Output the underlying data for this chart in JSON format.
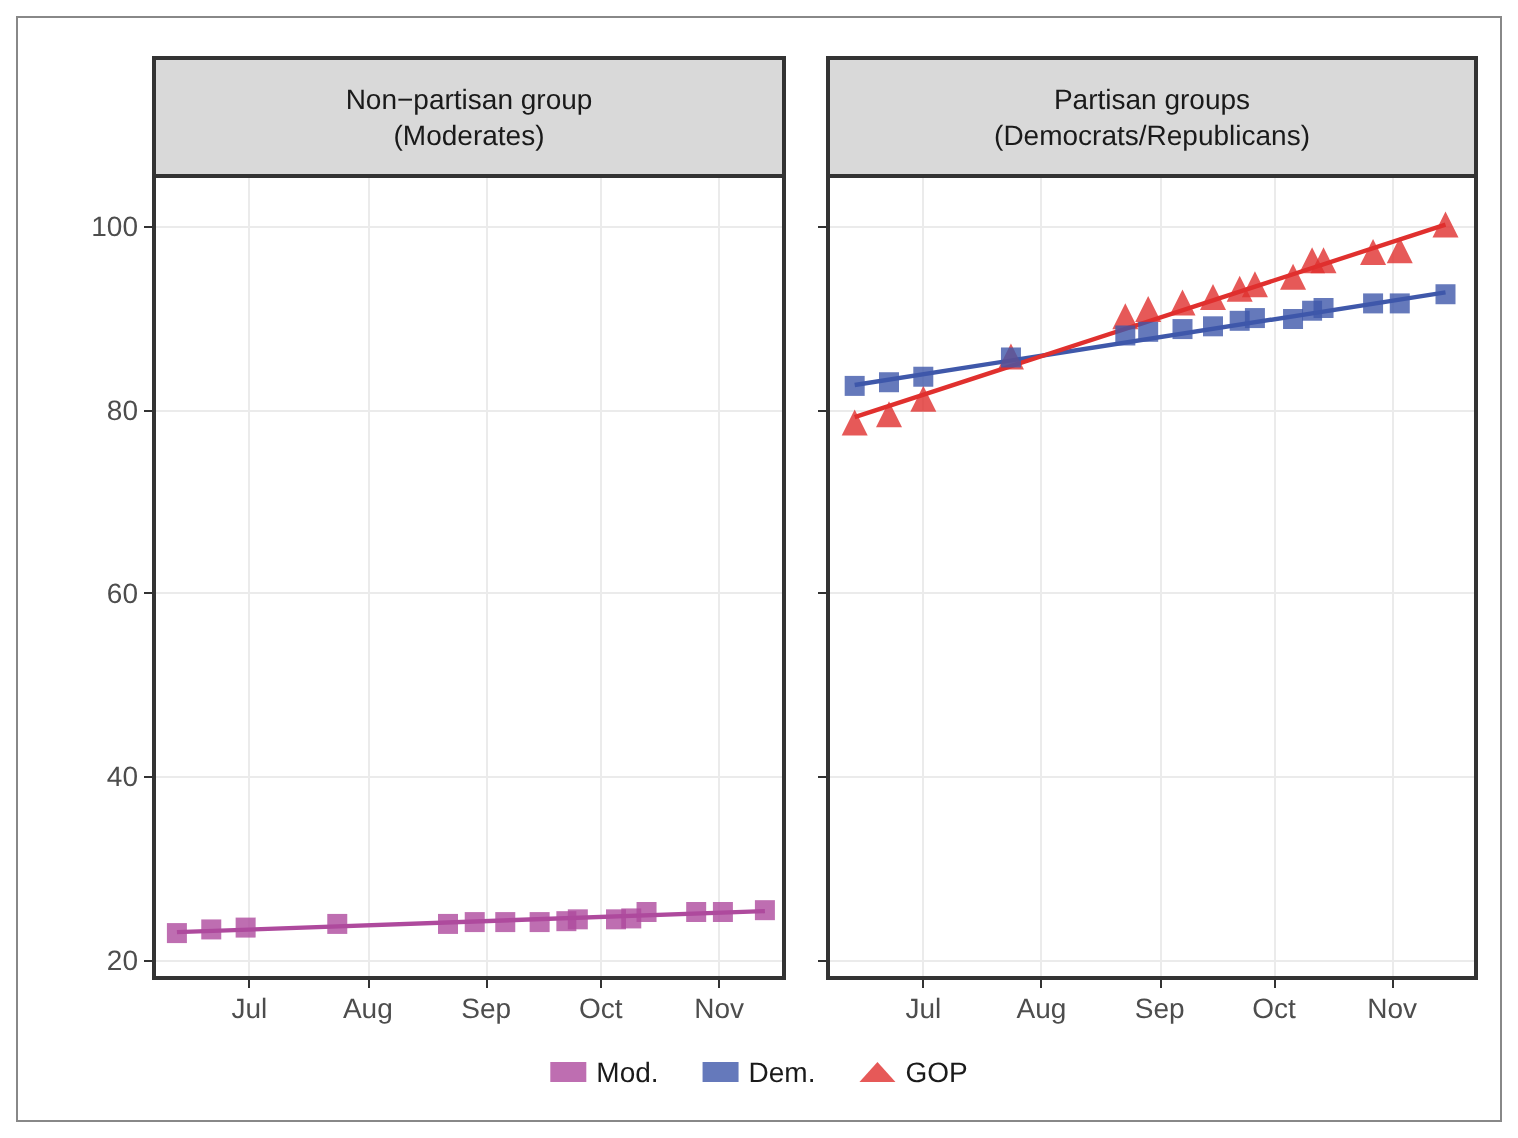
{
  "chart_data": [
    {
      "type": "scatter",
      "title": "Non−partisan group\n(Moderates)",
      "x": [
        "--06-12",
        "--06-21",
        "--06-30",
        "--07-24",
        "--08-22",
        "--08-29",
        "--09-06",
        "--09-15",
        "--09-22",
        "--09-25",
        "--10-05",
        "--10-09",
        "--10-13",
        "--10-26",
        "--11-02",
        "--11-13"
      ],
      "xlim": [
        "--06-06",
        "--11-18"
      ],
      "xticks": [
        {
          "value": "--07-01",
          "label": "Jul"
        },
        {
          "value": "--08-01",
          "label": "Aug"
        },
        {
          "value": "--09-01",
          "label": "Sep"
        },
        {
          "value": "--10-01",
          "label": "Oct"
        },
        {
          "value": "--11-01",
          "label": "Nov"
        }
      ],
      "ylim": [
        18,
        105.5
      ],
      "yticks": [
        20,
        40,
        60,
        80,
        100
      ],
      "grid": true,
      "legend": "bottom",
      "series": [
        {
          "name": "Mod.",
          "color": "#ae4a9d",
          "marker": "square",
          "values": [
            22.9,
            23.3,
            23.5,
            23.9,
            23.9,
            24.1,
            24.1,
            24.1,
            24.2,
            24.4,
            24.4,
            24.5,
            25.2,
            25.2,
            25.2,
            25.4
          ]
        },
        {
          "type": "line",
          "color": "#ae4a9d",
          "marker": "none",
          "x": [
            "--06-12",
            "--11-13"
          ],
          "values": [
            23.0,
            25.3
          ]
        }
      ]
    },
    {
      "type": "scatter",
      "title": "Partisan groups\n(Democrats/Republicans)",
      "tick_labels": "x",
      "x": [
        "--06-13",
        "--06-22",
        "--07-01",
        "--07-24",
        "--08-23",
        "--08-29",
        "--09-07",
        "--09-15",
        "--09-22",
        "--09-26",
        "--10-06",
        "--10-11",
        "--10-14",
        "--10-27",
        "--11-03",
        "--11-15"
      ],
      "xlim": [
        "--06-06",
        "--11-23"
      ],
      "xticks": [
        {
          "value": "--07-01",
          "label": "Jul"
        },
        {
          "value": "--08-01",
          "label": "Aug"
        },
        {
          "value": "--09-01",
          "label": "Sep"
        },
        {
          "value": "--10-01",
          "label": "Oct"
        },
        {
          "value": "--11-01",
          "label": "Nov"
        }
      ],
      "ylim": [
        18,
        105.5
      ],
      "yticks": [
        20,
        40,
        60,
        80,
        100
      ],
      "grid": true,
      "legend": "bottom",
      "series": [
        {
          "name": "Dem.",
          "color": "#3f58aa",
          "marker": "square",
          "values": [
            82.6,
            83.0,
            83.6,
            85.7,
            88.1,
            88.5,
            88.8,
            89.1,
            89.7,
            90.0,
            89.9,
            90.8,
            91.1,
            91.6,
            91.6,
            92.6
          ]
        },
        {
          "name": "GOP",
          "color": "#e0302e",
          "marker": "triangle",
          "values": [
            78.6,
            79.5,
            81.2,
            85.8,
            90.2,
            91.0,
            91.7,
            92.3,
            93.2,
            93.7,
            94.5,
            96.3,
            96.3,
            97.2,
            97.4,
            100.2
          ]
        },
        {
          "type": "line",
          "color": "#3f58aa",
          "marker": "none",
          "x": [
            "--06-13",
            "--11-15"
          ],
          "values": [
            82.7,
            92.8
          ]
        },
        {
          "type": "line",
          "color": "#e0302e",
          "marker": "none",
          "x": [
            "--06-13",
            "--11-15"
          ],
          "values": [
            79.2,
            100.2
          ]
        }
      ]
    }
  ]
}
